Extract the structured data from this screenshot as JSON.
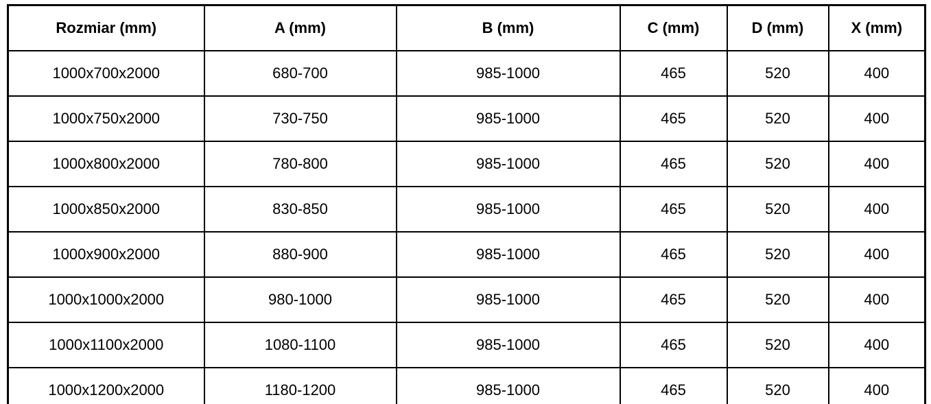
{
  "table": {
    "columns": [
      "Rozmiar (mm)",
      "A (mm)",
      "B (mm)",
      "C (mm)",
      "D (mm)",
      "X (mm)"
    ],
    "rows": [
      [
        "1000x700x2000",
        "680-700",
        "985-1000",
        "465",
        "520",
        "400"
      ],
      [
        "1000x750x2000",
        "730-750",
        "985-1000",
        "465",
        "520",
        "400"
      ],
      [
        "1000x800x2000",
        "780-800",
        "985-1000",
        "465",
        "520",
        "400"
      ],
      [
        "1000x850x2000",
        "830-850",
        "985-1000",
        "465",
        "520",
        "400"
      ],
      [
        "1000x900x2000",
        "880-900",
        "985-1000",
        "465",
        "520",
        "400"
      ],
      [
        "1000x1000x2000",
        "980-1000",
        "985-1000",
        "465",
        "520",
        "400"
      ],
      [
        "1000x1100x2000",
        "1080-1100",
        "985-1000",
        "465",
        "520",
        "400"
      ],
      [
        "1000x1200x2000",
        "1180-1200",
        "985-1000",
        "465",
        "520",
        "400"
      ]
    ],
    "colors": {
      "border": "#000000",
      "text": "#000000",
      "background": "#ffffff"
    }
  }
}
